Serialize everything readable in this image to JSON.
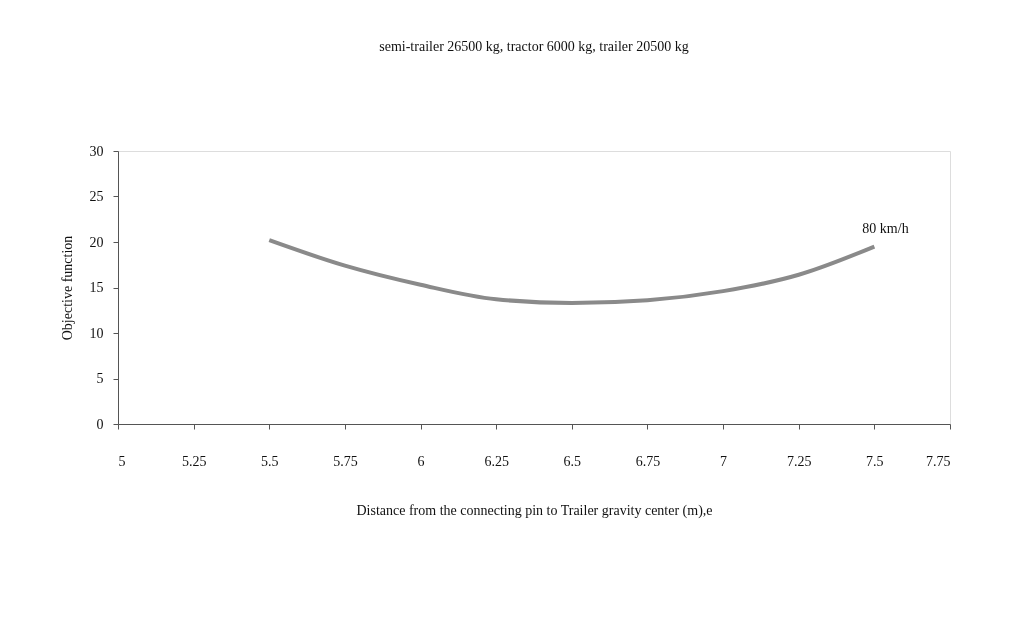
{
  "chart_data": {
    "type": "line",
    "title": "semi-trailer 26500 kg, tractor 6000 kg, trailer 20500 kg",
    "xlabel": "Distance from the connecting pin to Trailer gravity center  (m),e",
    "ylabel": "Objective function",
    "x": [
      5.5,
      5.75,
      6,
      6.25,
      6.5,
      6.75,
      7,
      7.25,
      7.5
    ],
    "series": [
      {
        "name": "80 km/h",
        "color": "#8a8a8a",
        "values": [
          20.2,
          17.4,
          15.3,
          13.7,
          13.3,
          13.6,
          14.6,
          16.4,
          19.5
        ]
      }
    ],
    "xlim": [
      5,
      7.75
    ],
    "xticks": [
      5,
      5.25,
      5.5,
      5.75,
      6,
      6.25,
      6.5,
      6.75,
      7,
      7.25,
      7.5,
      7.75
    ],
    "ylim": [
      0,
      30
    ],
    "yticks": [
      0,
      5,
      10,
      15,
      20,
      25,
      30
    ],
    "grid": false,
    "marker": "none",
    "line_style": "solid"
  }
}
